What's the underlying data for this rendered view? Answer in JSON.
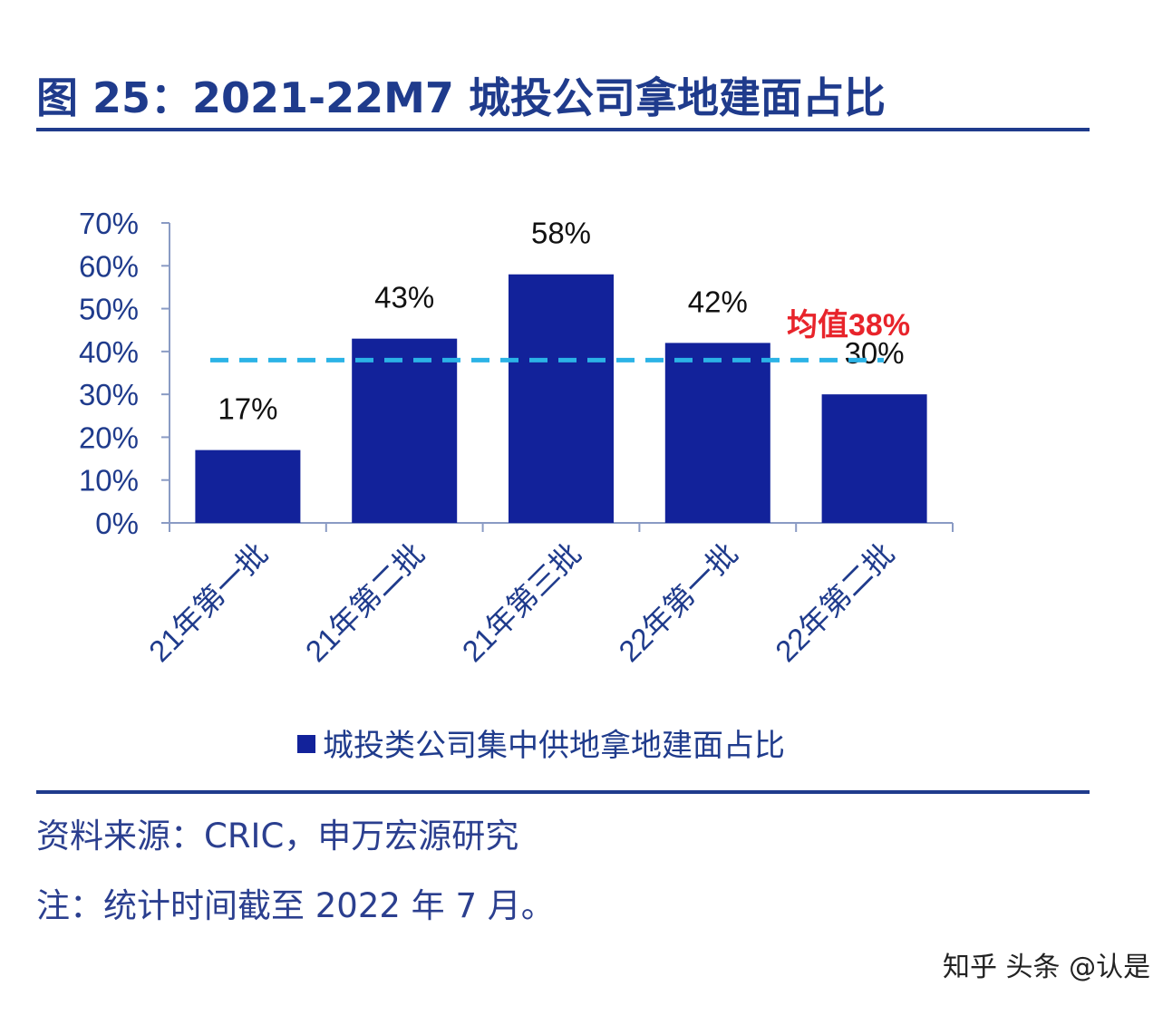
{
  "figure": {
    "title": "图 25：2021-22M7 城投公司拿地建面占比",
    "source": "资料来源：CRIC，申万宏源研究",
    "note": "注：统计时间截至 2022 年 7 月。",
    "watermark": "知乎 头条 @认是"
  },
  "colors": {
    "bar": "#12229a",
    "axis_text": "#1f3b8c",
    "mean_line": "#2bb3e6",
    "mean_label": "#e8242b",
    "rule": "#1f3b8c"
  },
  "chart_data": {
    "type": "bar",
    "categories": [
      "21年第一批",
      "21年第二批",
      "21年第三批",
      "22年第一批",
      "22年第二批"
    ],
    "series": [
      {
        "name": "城投类公司集中供地拿地建面占比",
        "values": [
          17,
          43,
          58,
          42,
          30
        ]
      }
    ],
    "data_labels": [
      "17%",
      "43%",
      "58%",
      "42%",
      "30%"
    ],
    "y_ticks": [
      "0%",
      "10%",
      "20%",
      "30%",
      "40%",
      "50%",
      "60%",
      "70%"
    ],
    "ylim": [
      0,
      70
    ],
    "mean": {
      "value": 38,
      "label": "均值38%"
    },
    "legend": "bottom",
    "grid": false
  }
}
